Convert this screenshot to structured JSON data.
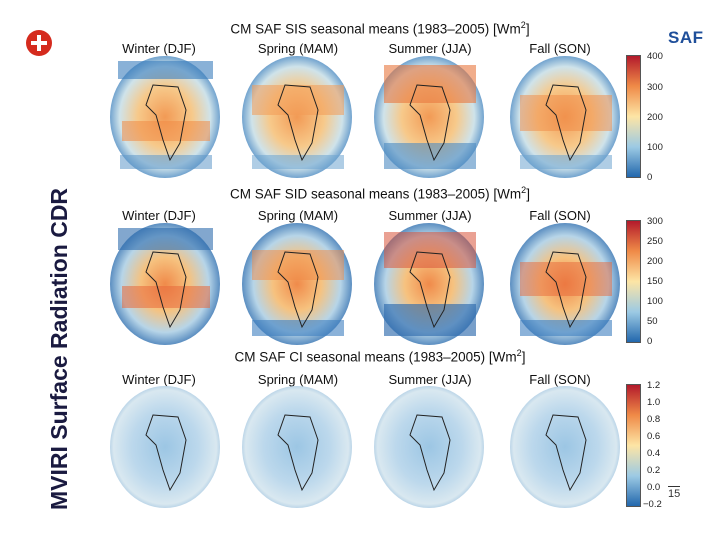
{
  "side_title": "MVIRI Surface Radiation CDR",
  "logo_text": "SAF",
  "page_number": "15",
  "seasons": [
    "Winter (DJF)",
    "Spring (MAM)",
    "Summer (JJA)",
    "Fall (SON)"
  ],
  "panels": [
    {
      "title_main": "CM SAF SIS seasonal means (1983–2005) [Wm",
      "title_sup": "2",
      "title_end": "]",
      "ticks": [
        "400",
        "300",
        "200",
        "100",
        "0"
      ]
    },
    {
      "title_main": "CM SAF SID seasonal means (1983–2005) [Wm",
      "title_sup": "2",
      "title_end": "]",
      "ticks": [
        "300",
        "250",
        "200",
        "150",
        "100",
        "50",
        "0"
      ]
    },
    {
      "title_main": "CM SAF CI seasonal means (1983–2005) [Wm",
      "title_sup": "2",
      "title_end": "]",
      "ticks": [
        "1.2",
        "1.0",
        "0.8",
        "0.6",
        "0.4",
        "0.2",
        "0.0",
        "−0.2"
      ]
    }
  ],
  "colors": {
    "high": "#c0392b",
    "mid_warm": "#f5a55c",
    "mid": "#fbe9b0",
    "mid_cool": "#a8cde6",
    "low": "#2c6fb0"
  }
}
